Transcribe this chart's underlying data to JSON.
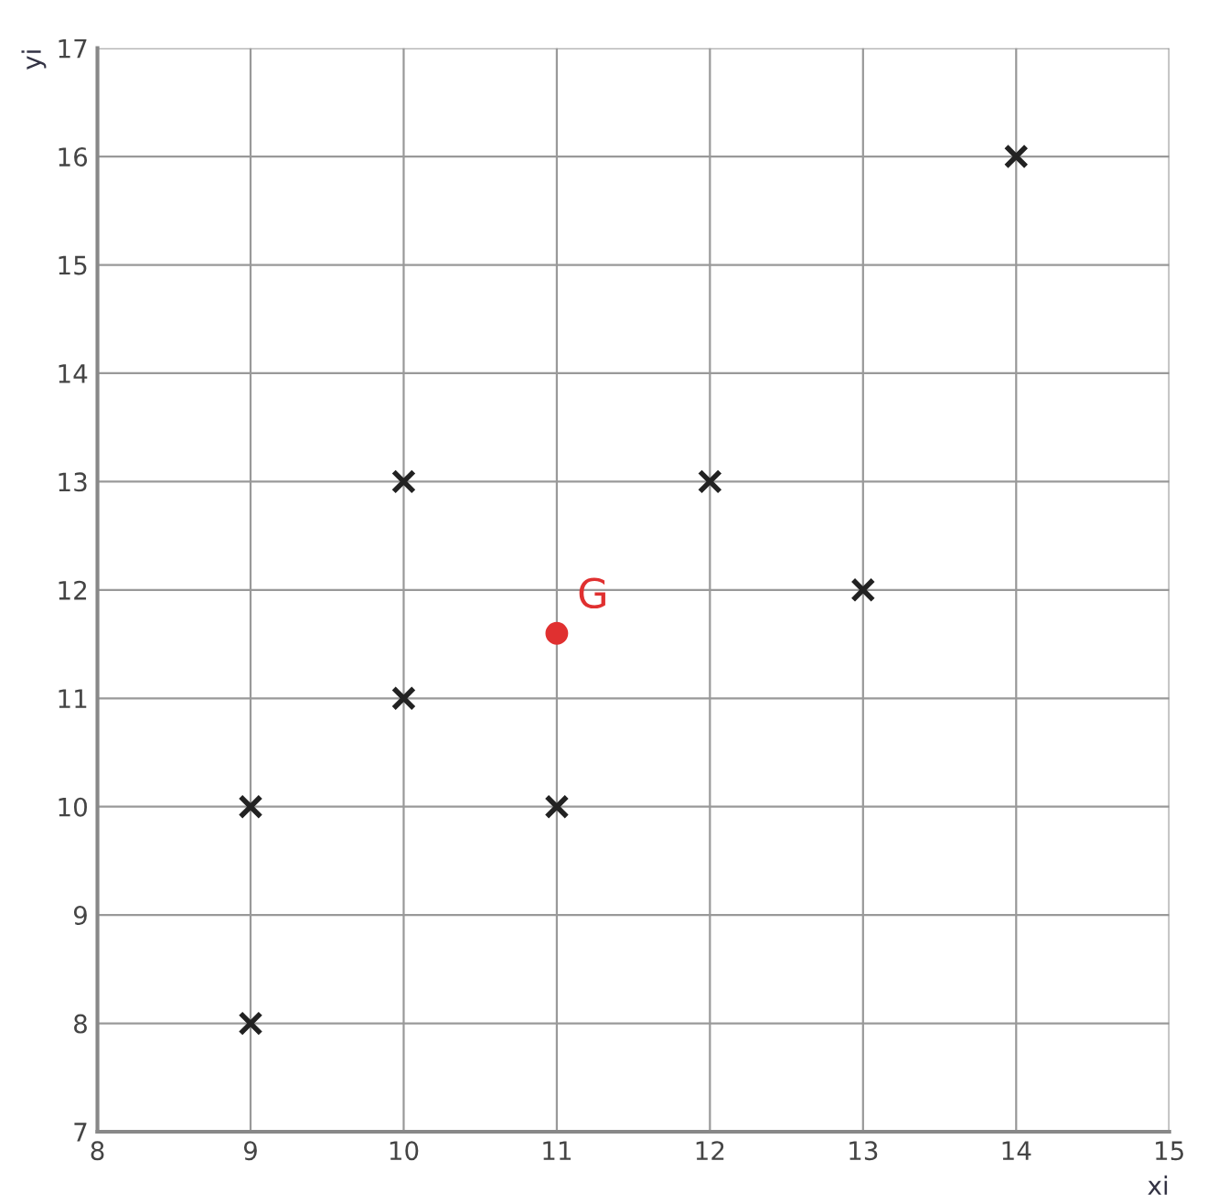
{
  "chart_data": {
    "type": "scatter",
    "xlabel": "xi",
    "ylabel": "yi",
    "xlim": [
      8,
      15
    ],
    "ylim": [
      7,
      17
    ],
    "xticks": [
      8,
      9,
      10,
      11,
      12,
      13,
      14,
      15
    ],
    "yticks": [
      7,
      8,
      9,
      10,
      11,
      12,
      13,
      14,
      15,
      16,
      17
    ],
    "grid": true,
    "series": [
      {
        "color": "#222222",
        "marker": "cross",
        "x": [
          9,
          9,
          10,
          10,
          11,
          12,
          13,
          14
        ],
        "values": [
          8,
          10,
          11,
          13,
          10,
          13,
          12,
          16
        ]
      },
      {
        "name": "G",
        "color": "#e03030",
        "marker": "circle",
        "x": [
          11
        ],
        "values": [
          11.6
        ]
      }
    ]
  }
}
